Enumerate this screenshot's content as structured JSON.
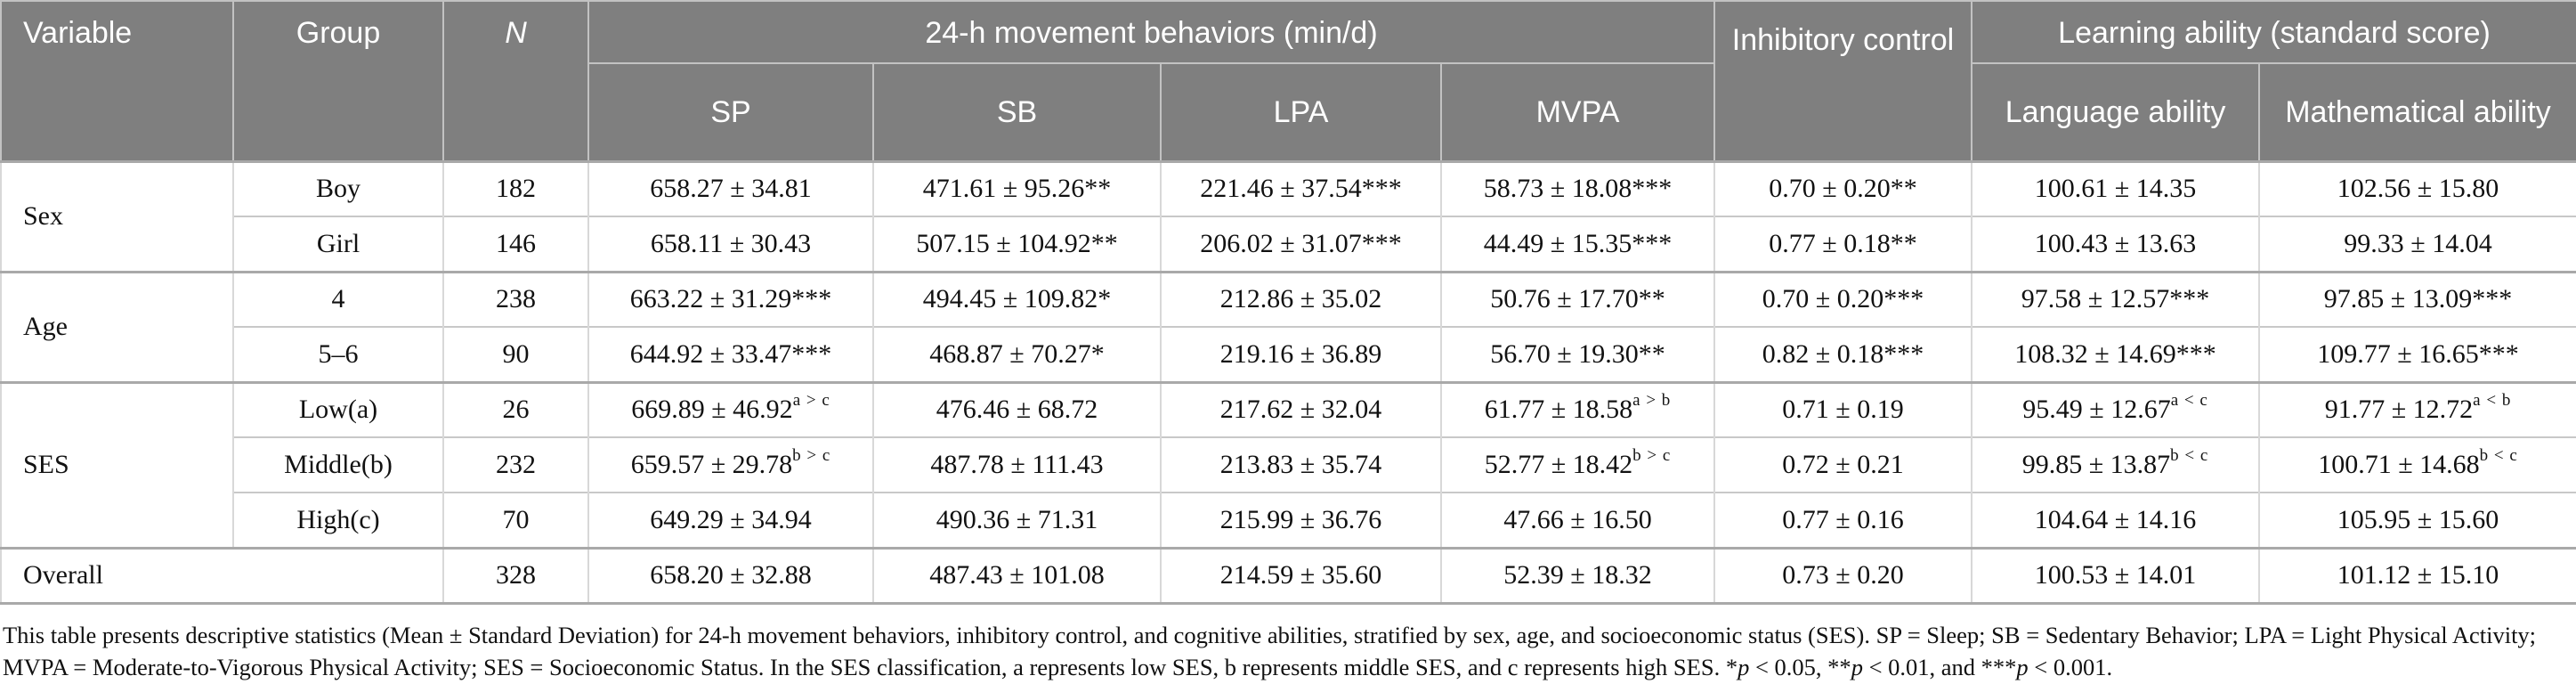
{
  "colors": {
    "header_bg": "#7f7f7f",
    "header_text": "#ffffff",
    "body_text": "#111111"
  },
  "table": {
    "header": {
      "variable": "Variable",
      "group": "Group",
      "n": "N",
      "movement_group": "24-h movement behaviors (min/d)",
      "sp": "SP",
      "sb": "SB",
      "lpa": "LPA",
      "mvpa": "MVPA",
      "inhibitory": "Inhibitory control",
      "learning_group": "Learning ability (standard score)",
      "language": "Language ability",
      "math": "Mathematical ability"
    },
    "column_keys": [
      "sp",
      "sb",
      "lpa",
      "mvpa",
      "inhibitory",
      "language",
      "math"
    ],
    "groups": [
      {
        "variable": "Sex",
        "rows": [
          {
            "group": "Boy",
            "n": "182",
            "sp": "658.27 ± 34.81",
            "sb": "471.61 ± 95.26**",
            "lpa": "221.46 ± 37.54***",
            "mvpa": "58.73 ± 18.08***",
            "inhibitory": "0.70 ± 0.20**",
            "language": "100.61 ± 14.35",
            "math": "102.56 ± 15.80"
          },
          {
            "group": "Girl",
            "n": "146",
            "sp": "658.11 ± 30.43",
            "sb": "507.15 ± 104.92**",
            "lpa": "206.02 ± 31.07***",
            "mvpa": "44.49 ± 15.35***",
            "inhibitory": "0.77 ± 0.18**",
            "language": "100.43 ± 13.63",
            "math": "99.33 ± 14.04"
          }
        ]
      },
      {
        "variable": "Age",
        "rows": [
          {
            "group": "4",
            "n": "238",
            "sp": "663.22 ± 31.29***",
            "sb": "494.45 ± 109.82*",
            "lpa": "212.86 ± 35.02",
            "mvpa": "50.76 ± 17.70**",
            "inhibitory": "0.70 ± 0.20***",
            "language": "97.58 ± 12.57***",
            "math": "97.85 ± 13.09***"
          },
          {
            "group": "5–6",
            "n": "90",
            "sp": "644.92 ± 33.47***",
            "sb": "468.87 ± 70.27*",
            "lpa": "219.16 ± 36.89",
            "mvpa": "56.70 ± 19.30**",
            "inhibitory": "0.82 ± 0.18***",
            "language": "108.32 ± 14.69***",
            "math": "109.77 ± 16.65***"
          }
        ]
      },
      {
        "variable": "SES",
        "rows": [
          {
            "group": "Low(a)",
            "n": "26",
            "sp": "669.89 ± 46.92^{a > c}",
            "sb": "476.46 ± 68.72",
            "lpa": "217.62 ± 32.04",
            "mvpa": "61.77 ± 18.58^{a > b}",
            "inhibitory": "0.71 ± 0.19",
            "language": "95.49 ± 12.67^{a < c}",
            "math": "91.77 ± 12.72^{a < b}"
          },
          {
            "group": "Middle(b)",
            "n": "232",
            "sp": "659.57 ± 29.78^{b > c}",
            "sb": "487.78 ± 111.43",
            "lpa": "213.83 ± 35.74",
            "mvpa": "52.77 ± 18.42^{b > c}",
            "inhibitory": "0.72 ± 0.21",
            "language": "99.85 ± 13.87^{b < c}",
            "math": "100.71 ± 14.68^{b < c}"
          },
          {
            "group": "High(c)",
            "n": "70",
            "sp": "649.29 ± 34.94",
            "sb": "490.36 ± 71.31",
            "lpa": "215.99 ± 36.76",
            "mvpa": "47.66 ± 16.50",
            "inhibitory": "0.77 ± 0.16",
            "language": "104.64 ± 14.16",
            "math": "105.95 ± 15.60"
          }
        ]
      }
    ],
    "overall": {
      "label": "Overall",
      "n": "328",
      "sp": "658.20 ± 32.88",
      "sb": "487.43 ± 101.08",
      "lpa": "214.59 ± 35.60",
      "mvpa": "52.39 ± 18.32",
      "inhibitory": "0.73 ± 0.20",
      "language": "100.53 ± 14.01",
      "math": "101.12 ± 15.10"
    }
  },
  "footnote": {
    "line1": [
      {
        "t": "This table presents descriptive statistics (Mean ± Standard Deviation) for 24-h movement behaviors, inhibitory control, and cognitive abilities, stratified by sex, age, and socioeconomic status (SES). SP = Sleep; SB = Sedentary Behavior; LPA = Light Physical Activity;"
      }
    ],
    "line2": [
      {
        "t": "MVPA = Moderate-to-Vigorous Physical Activity; SES = Socioeconomic Status. In the SES classification, a represents low SES, b represents middle SES, and c represents high SES. *"
      },
      {
        "t": "p",
        "i": true
      },
      {
        "t": " < 0.05, **"
      },
      {
        "t": "p",
        "i": true
      },
      {
        "t": " < 0.01, and ***"
      },
      {
        "t": "p",
        "i": true
      },
      {
        "t": " < 0.001."
      }
    ]
  }
}
